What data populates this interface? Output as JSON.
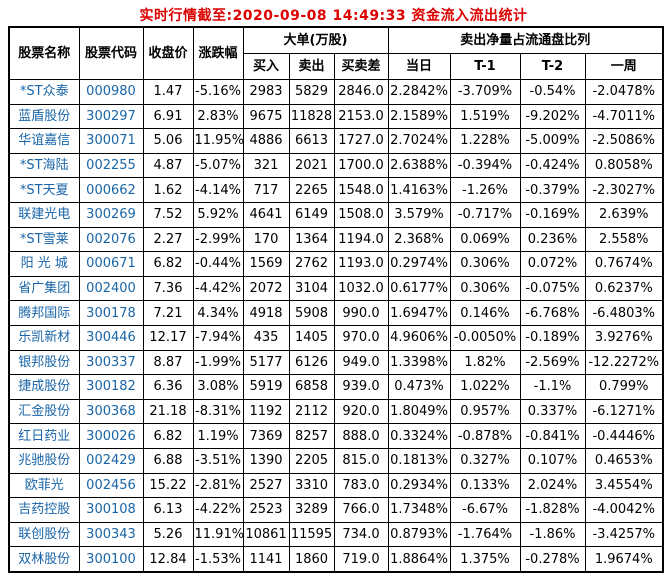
{
  "title": "实时行情截至:2020-09-08 14:49:33 资金流入流出统计",
  "colors": {
    "title_red": "#dd0000",
    "link_blue": "#1965a8",
    "border": "#000000",
    "background": "#ffffff"
  },
  "table": {
    "headers": {
      "name": "股票名称",
      "code": "股票代码",
      "close": "收盘价",
      "change": "涨跌幅",
      "large_orders_group": "大单(万股)",
      "ratio_group": "卖出净量占流通盘比列",
      "buy": "买入",
      "sell": "卖出",
      "diff": "买卖差",
      "day": "当日",
      "t1": "T-1",
      "t2": "T-2",
      "week": "一周"
    },
    "rows": [
      [
        "*ST众泰",
        "000980",
        "1.47",
        "-5.16%",
        "2983",
        "5829",
        "2846.0",
        "2.2842%",
        "-3.709%",
        "-0.54%",
        "-2.0478%"
      ],
      [
        "蓝盾股份",
        "300297",
        "6.91",
        "2.83%",
        "9675",
        "11828",
        "2153.0",
        "2.1589%",
        "1.519%",
        "-9.202%",
        "-4.7011%"
      ],
      [
        "华谊嘉信",
        "300071",
        "5.06",
        "11.95%",
        "4886",
        "6613",
        "1727.0",
        "2.7024%",
        "1.228%",
        "-5.009%",
        "-2.5086%"
      ],
      [
        "*ST海陆",
        "002255",
        "4.87",
        "-5.07%",
        "321",
        "2021",
        "1700.0",
        "2.6388%",
        "-0.394%",
        "-0.424%",
        "0.8058%"
      ],
      [
        "*ST天夏",
        "000662",
        "1.62",
        "-4.14%",
        "717",
        "2265",
        "1548.0",
        "1.4163%",
        "-1.26%",
        "-0.379%",
        "-2.3027%"
      ],
      [
        "联建光电",
        "300269",
        "7.52",
        "5.92%",
        "4641",
        "6149",
        "1508.0",
        "3.579%",
        "-0.717%",
        "-0.169%",
        "2.639%"
      ],
      [
        "*ST雪莱",
        "002076",
        "2.27",
        "-2.99%",
        "170",
        "1364",
        "1194.0",
        "2.368%",
        "0.069%",
        "0.236%",
        "2.558%"
      ],
      [
        "阳 光 城",
        "000671",
        "6.82",
        "-0.44%",
        "1569",
        "2762",
        "1193.0",
        "0.2974%",
        "0.306%",
        "0.072%",
        "0.7674%"
      ],
      [
        "省广集团",
        "002400",
        "7.36",
        "-4.42%",
        "2072",
        "3104",
        "1032.0",
        "0.6177%",
        "0.306%",
        "-0.075%",
        "0.6237%"
      ],
      [
        "腾邦国际",
        "300178",
        "7.21",
        "4.34%",
        "4918",
        "5908",
        "990.0",
        "1.6947%",
        "0.146%",
        "-6.768%",
        "-6.4803%"
      ],
      [
        "乐凯新材",
        "300446",
        "12.17",
        "-7.94%",
        "435",
        "1405",
        "970.0",
        "4.9606%",
        "-0.0050%",
        "-0.189%",
        "3.9276%"
      ],
      [
        "银邦股份",
        "300337",
        "8.87",
        "-1.99%",
        "5177",
        "6126",
        "949.0",
        "1.3398%",
        "1.82%",
        "-2.569%",
        "-12.2272%"
      ],
      [
        "捷成股份",
        "300182",
        "6.36",
        "3.08%",
        "5919",
        "6858",
        "939.0",
        "0.473%",
        "1.022%",
        "-1.1%",
        "0.799%"
      ],
      [
        "汇金股份",
        "300368",
        "21.18",
        "-8.31%",
        "1192",
        "2112",
        "920.0",
        "1.8049%",
        "0.957%",
        "0.337%",
        "-6.1271%"
      ],
      [
        "红日药业",
        "300026",
        "6.82",
        "1.19%",
        "7369",
        "8257",
        "888.0",
        "0.3324%",
        "-0.878%",
        "-0.841%",
        "-0.4446%"
      ],
      [
        "兆驰股份",
        "002429",
        "6.88",
        "-3.51%",
        "1390",
        "2205",
        "815.0",
        "0.1813%",
        "0.327%",
        "0.107%",
        "0.4653%"
      ],
      [
        "欧菲光",
        "002456",
        "15.22",
        "-2.81%",
        "2527",
        "3310",
        "783.0",
        "0.2934%",
        "0.133%",
        "2.024%",
        "3.4554%"
      ],
      [
        "吉药控股",
        "300108",
        "6.13",
        "-4.22%",
        "2523",
        "3289",
        "766.0",
        "1.7348%",
        "-6.67%",
        "-1.828%",
        "-4.0042%"
      ],
      [
        "联创股份",
        "300343",
        "5.26",
        "11.91%",
        "10861",
        "11595",
        "734.0",
        "0.8793%",
        "-1.764%",
        "-1.86%",
        "-3.4257%"
      ],
      [
        "双林股份",
        "300100",
        "12.84",
        "-1.53%",
        "1141",
        "1860",
        "719.0",
        "1.8864%",
        "1.375%",
        "-0.278%",
        "1.9674%"
      ]
    ]
  }
}
